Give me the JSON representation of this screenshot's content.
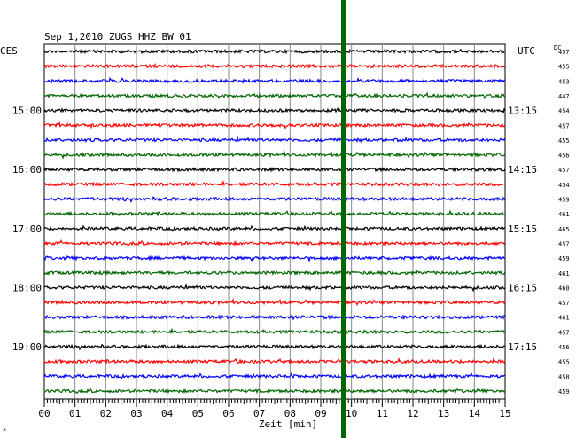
{
  "chart_data": {
    "type": "line",
    "title": "Sep 1,2010   ZUGS HHZ BW 01",
    "left_timezone": "CES",
    "right_timezone": "UTC",
    "dc_label": "DC",
    "xlabel": "Zeit [min]",
    "x_ticks": [
      "00",
      "01",
      "02",
      "03",
      "04",
      "05",
      "06",
      "07",
      "08",
      "09",
      "10",
      "11",
      "12",
      "13",
      "14",
      "15"
    ],
    "xlim": [
      0,
      15
    ],
    "grid": true,
    "trace_colors": [
      "#000000",
      "#ff0000",
      "#0000ff",
      "#006600"
    ],
    "left_hour_labels": [
      {
        "row": 4,
        "text": "15:00"
      },
      {
        "row": 8,
        "text": "16:00"
      },
      {
        "row": 12,
        "text": "17:00"
      },
      {
        "row": 16,
        "text": "18:00"
      },
      {
        "row": 20,
        "text": "19:00"
      }
    ],
    "right_hour_labels": [
      {
        "row": 4,
        "text": "13:15"
      },
      {
        "row": 8,
        "text": "14:15"
      },
      {
        "row": 12,
        "text": "15:15"
      },
      {
        "row": 16,
        "text": "16:15"
      },
      {
        "row": 20,
        "text": "17:15"
      }
    ],
    "dc_values": [
      457,
      455,
      453,
      447,
      454,
      457,
      455,
      456,
      457,
      454,
      459,
      461,
      465,
      457,
      459,
      461,
      460,
      457,
      461,
      457,
      456,
      455,
      458,
      459
    ],
    "event_marker": {
      "minute": 9.75,
      "color": "#006600"
    },
    "corner_mark": "*"
  }
}
